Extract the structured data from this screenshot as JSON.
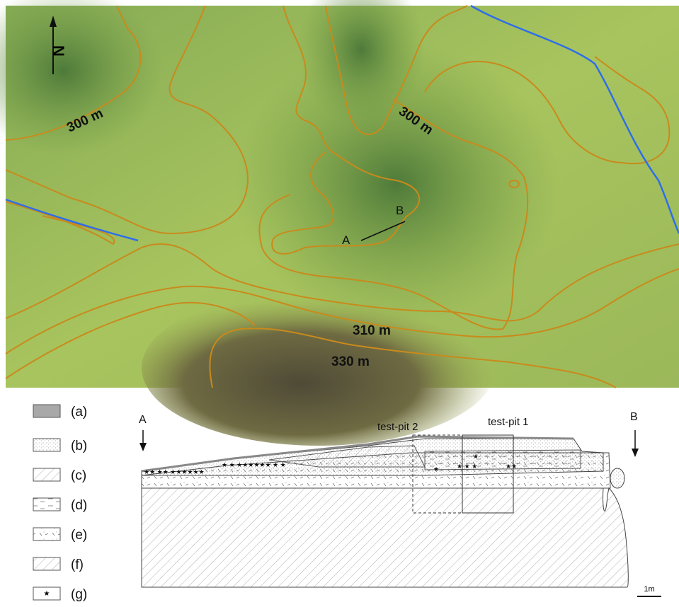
{
  "map": {
    "north": "N",
    "contour_labels": [
      "300 m",
      "300 m",
      "310 m",
      "330 m"
    ],
    "section_line": {
      "start": "A",
      "end": "B"
    }
  },
  "legend": {
    "items": [
      "(a)",
      "(b)",
      "(c)",
      "(d)",
      "(e)",
      "(f)",
      "(g)"
    ]
  },
  "cross_section": {
    "start": "A",
    "end": "B",
    "test_pits": [
      "test-pit 2",
      "test-pit 1"
    ],
    "scale": "1m"
  }
}
